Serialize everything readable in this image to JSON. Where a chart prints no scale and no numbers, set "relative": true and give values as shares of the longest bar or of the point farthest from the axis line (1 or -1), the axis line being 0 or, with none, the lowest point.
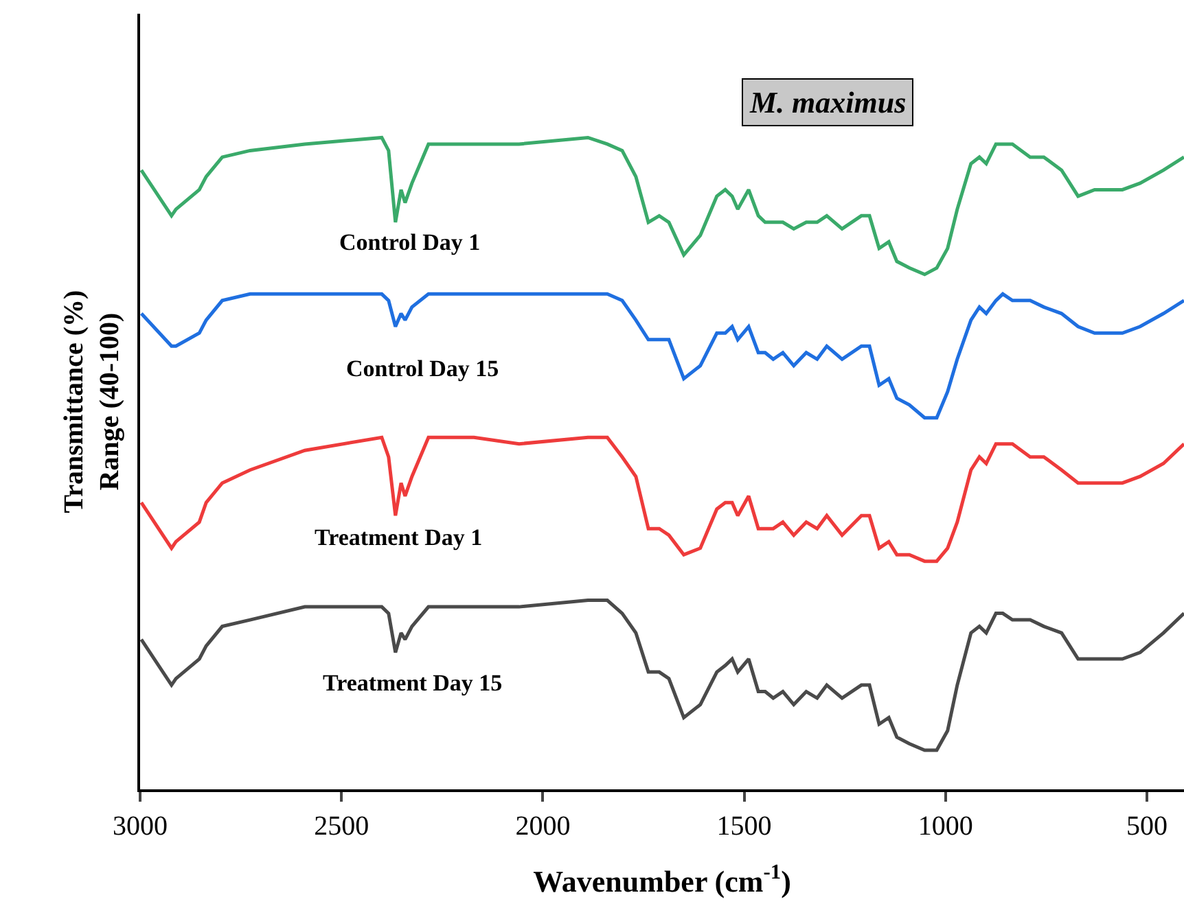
{
  "chart_data": {
    "type": "line",
    "relative": true,
    "title": "M. maximus",
    "xlabel": "Wavenumber (cm$^{-1}$)",
    "ylabel": "Transmittance (%)\nRange (40-100)",
    "xlim": [
      3000,
      408
    ],
    "xticks": [
      3000,
      2500,
      2000,
      1500,
      1000,
      500
    ],
    "grid": false,
    "legend": false,
    "marker": "none",
    "line_style": "solid",
    "tick_labels": "x",
    "x": [
      2997,
      2922,
      2911,
      2853,
      2836,
      2796,
      2727,
      2591,
      2400,
      2383,
      2366,
      2352,
      2342,
      2325,
      2284,
      2171,
      2059,
      1888,
      1840,
      1803,
      1769,
      1738,
      1711,
      1687,
      1650,
      1609,
      1568,
      1547,
      1530,
      1516,
      1489,
      1465,
      1448,
      1428,
      1404,
      1377,
      1346,
      1319,
      1295,
      1257,
      1209,
      1189,
      1165,
      1141,
      1121,
      1090,
      1052,
      1022,
      995,
      971,
      937,
      916,
      899,
      875,
      858,
      834,
      790,
      756,
      712,
      671,
      630,
      609,
      561,
      517,
      459,
      408
    ],
    "series": [
      {
        "name": "Control Day 1",
        "color": "#3aaa6a",
        "values": [
          0.95,
          0.88,
          0.89,
          0.92,
          0.94,
          0.97,
          0.98,
          0.99,
          1.0,
          0.98,
          0.87,
          0.92,
          0.9,
          0.93,
          0.99,
          0.99,
          0.99,
          1.0,
          0.99,
          0.98,
          0.94,
          0.87,
          0.88,
          0.87,
          0.82,
          0.85,
          0.91,
          0.92,
          0.91,
          0.89,
          0.92,
          0.88,
          0.87,
          0.87,
          0.87,
          0.86,
          0.87,
          0.87,
          0.88,
          0.86,
          0.88,
          0.88,
          0.83,
          0.84,
          0.81,
          0.8,
          0.79,
          0.8,
          0.83,
          0.89,
          0.96,
          0.97,
          0.96,
          0.99,
          0.99,
          0.99,
          0.97,
          0.97,
          0.95,
          0.91,
          0.92,
          0.92,
          0.92,
          0.93,
          0.95,
          0.97
        ]
      },
      {
        "name": "Control Day 15",
        "color": "#1f6fe0",
        "values": [
          0.73,
          0.68,
          0.68,
          0.7,
          0.72,
          0.75,
          0.76,
          0.76,
          0.76,
          0.75,
          0.71,
          0.73,
          0.72,
          0.74,
          0.76,
          0.76,
          0.76,
          0.76,
          0.76,
          0.75,
          0.72,
          0.69,
          0.69,
          0.69,
          0.63,
          0.65,
          0.7,
          0.7,
          0.71,
          0.69,
          0.71,
          0.67,
          0.67,
          0.66,
          0.67,
          0.65,
          0.67,
          0.66,
          0.68,
          0.66,
          0.68,
          0.68,
          0.62,
          0.63,
          0.6,
          0.59,
          0.57,
          0.57,
          0.61,
          0.66,
          0.72,
          0.74,
          0.73,
          0.75,
          0.76,
          0.75,
          0.75,
          0.74,
          0.73,
          0.71,
          0.7,
          0.7,
          0.7,
          0.71,
          0.73,
          0.75
        ]
      },
      {
        "name": "Treatment Day 1",
        "color": "#ee3b3b",
        "values": [
          0.44,
          0.37,
          0.38,
          0.41,
          0.44,
          0.47,
          0.49,
          0.52,
          0.54,
          0.51,
          0.42,
          0.47,
          0.45,
          0.48,
          0.54,
          0.54,
          0.53,
          0.54,
          0.54,
          0.51,
          0.48,
          0.4,
          0.4,
          0.39,
          0.36,
          0.37,
          0.43,
          0.44,
          0.44,
          0.42,
          0.45,
          0.4,
          0.4,
          0.4,
          0.41,
          0.39,
          0.41,
          0.4,
          0.42,
          0.39,
          0.42,
          0.42,
          0.37,
          0.38,
          0.36,
          0.36,
          0.35,
          0.35,
          0.37,
          0.41,
          0.49,
          0.51,
          0.5,
          0.53,
          0.53,
          0.53,
          0.51,
          0.51,
          0.49,
          0.47,
          0.47,
          0.47,
          0.47,
          0.48,
          0.5,
          0.53
        ]
      },
      {
        "name": "Treatment Day 15",
        "color": "#4a4a4a",
        "values": [
          0.23,
          0.16,
          0.17,
          0.2,
          0.22,
          0.25,
          0.26,
          0.28,
          0.28,
          0.27,
          0.21,
          0.24,
          0.23,
          0.25,
          0.28,
          0.28,
          0.28,
          0.29,
          0.29,
          0.27,
          0.24,
          0.18,
          0.18,
          0.17,
          0.11,
          0.13,
          0.18,
          0.19,
          0.2,
          0.18,
          0.2,
          0.15,
          0.15,
          0.14,
          0.15,
          0.13,
          0.15,
          0.14,
          0.16,
          0.14,
          0.16,
          0.16,
          0.1,
          0.11,
          0.08,
          0.07,
          0.06,
          0.06,
          0.09,
          0.16,
          0.24,
          0.25,
          0.24,
          0.27,
          0.27,
          0.26,
          0.26,
          0.25,
          0.24,
          0.2,
          0.2,
          0.2,
          0.2,
          0.21,
          0.24,
          0.27
        ]
      }
    ]
  }
}
